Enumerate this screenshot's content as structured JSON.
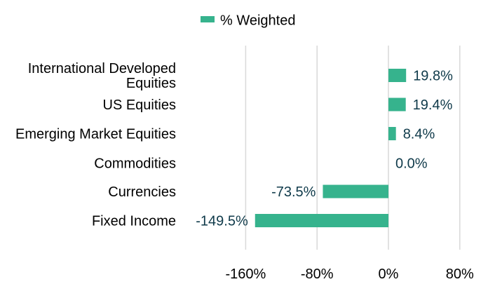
{
  "chart_data": {
    "type": "bar",
    "orientation": "horizontal",
    "categories": [
      "International Developed Equities",
      "US Equities",
      "Emerging Market Equities",
      "Commodities",
      "Currencies",
      "Fixed Income"
    ],
    "category_label_lines": [
      [
        "International Developed",
        "Equities"
      ],
      [
        "US Equities"
      ],
      [
        "Emerging Market Equities"
      ],
      [
        "Commodities"
      ],
      [
        "Currencies"
      ],
      [
        "Fixed Income"
      ]
    ],
    "series": [
      {
        "name": "% Weighted",
        "values": [
          19.8,
          19.4,
          8.4,
          0.0,
          -73.5,
          -149.5
        ],
        "color": "#36b38d"
      }
    ],
    "data_labels": [
      "19.8%",
      "19.4%",
      "8.4%",
      "0.0%",
      "-73.5%",
      "-149.5%"
    ],
    "data_label_color": "#0f3a4a",
    "xlim": [
      -160,
      80
    ],
    "xticks": [
      -160,
      -80,
      0,
      80
    ],
    "xtick_labels": [
      "-160%",
      "-80%",
      "0%",
      "80%"
    ],
    "grid": "vertical",
    "legend_position": "top-center",
    "title": "",
    "xlabel": "",
    "ylabel": ""
  }
}
